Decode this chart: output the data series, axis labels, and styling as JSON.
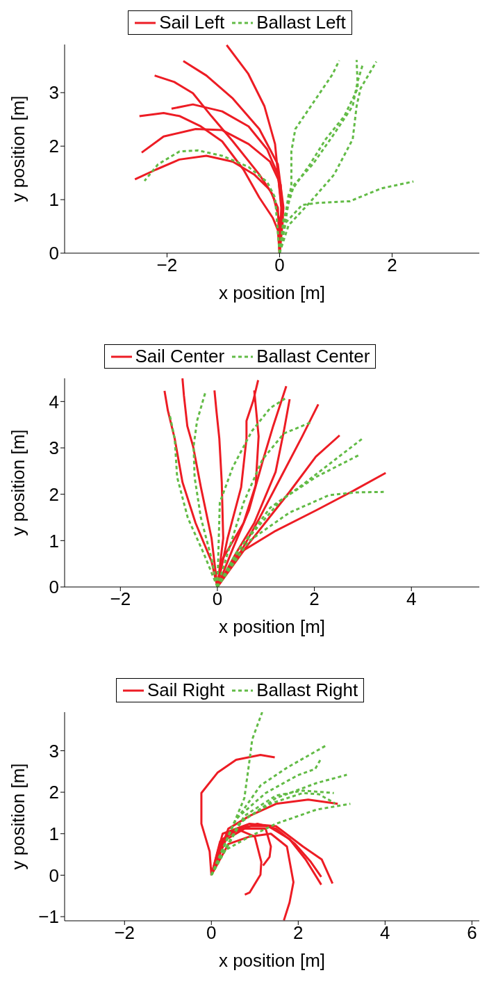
{
  "chart_data": [
    {
      "type": "line",
      "xlabel": "x position [m]",
      "ylabel": "y position [m]",
      "xlim": [
        -3.82,
        3.55
      ],
      "ylim": [
        0,
        3.9
      ],
      "xticks": [
        -2,
        0,
        2
      ],
      "yticks": [
        0,
        1,
        2,
        3
      ],
      "legend": "top",
      "series": [
        {
          "name": "Sail Left",
          "color": "#ed1c24",
          "line_style": "solid",
          "x": [
            0,
            0.03,
            -0.08,
            -0.27,
            -0.56,
            -0.94
          ],
          "values": [
            0,
            0.85,
            2.04,
            2.75,
            3.36,
            3.89
          ]
        },
        {
          "color": "#ed1c24",
          "line_style": "solid",
          "x": [
            0,
            0.07,
            -0.03,
            -0.36,
            -0.83,
            -1.3,
            -1.71
          ],
          "values": [
            0,
            0.85,
            1.66,
            2.32,
            2.89,
            3.32,
            3.59
          ]
        },
        {
          "color": "#ed1c24",
          "line_style": "solid",
          "x": [
            0,
            0,
            -0.12,
            -0.36,
            -0.83,
            -1.21,
            -1.54,
            -1.87,
            -2.22
          ],
          "values": [
            0,
            0.62,
            1.09,
            1.47,
            2.09,
            2.56,
            2.99,
            3.2,
            3.32
          ]
        },
        {
          "color": "#ed1c24",
          "line_style": "solid",
          "x": [
            0,
            0.04,
            -0.03,
            -0.22,
            -0.55,
            -1.02,
            -1.54,
            -1.92
          ],
          "values": [
            0,
            0.85,
            1.47,
            1.94,
            2.37,
            2.65,
            2.78,
            2.7
          ]
        },
        {
          "color": "#ed1c24",
          "line_style": "solid",
          "x": [
            0,
            -0.03,
            -0.12,
            -0.36,
            -0.64,
            -1.02,
            -1.4,
            -1.77,
            -2.06,
            -2.49
          ],
          "values": [
            0,
            0.43,
            0.66,
            1.04,
            1.56,
            2.09,
            2.37,
            2.56,
            2.62,
            2.56
          ]
        },
        {
          "color": "#ed1c24",
          "line_style": "solid",
          "x": [
            0,
            0.06,
            0.02,
            -0.17,
            -0.55,
            -1.02,
            -1.49,
            -2.06,
            -2.45
          ],
          "values": [
            0,
            0.62,
            1.28,
            1.71,
            2.04,
            2.3,
            2.32,
            2.18,
            1.88
          ]
        },
        {
          "color": "#ed1c24",
          "line_style": "solid",
          "x": [
            0,
            -0.03,
            -0.17,
            -0.45,
            -0.83,
            -1.3,
            -1.78,
            -2.2,
            -2.57
          ],
          "values": [
            0,
            0.85,
            1.18,
            1.47,
            1.71,
            1.82,
            1.75,
            1.56,
            1.38
          ]
        },
        {
          "name": "Ballast Left",
          "color": "#62bb46",
          "line_style": "dashed",
          "x": [
            0,
            -0.08,
            -0.22,
            -0.55,
            -1.02,
            -1.45,
            -1.78,
            -2.16,
            -2.4
          ],
          "values": [
            0,
            1.04,
            1.33,
            1.61,
            1.82,
            1.92,
            1.9,
            1.66,
            1.35
          ]
        },
        {
          "color": "#62bb46",
          "line_style": "dashed",
          "x": [
            0,
            0.11,
            0.21,
            0.21,
            0.28,
            0.59,
            0.94,
            1.06
          ],
          "values": [
            0,
            0.62,
            1.28,
            1.9,
            2.32,
            2.8,
            3.34,
            3.6
          ]
        },
        {
          "color": "#62bb46",
          "line_style": "dashed",
          "x": [
            0,
            0.16,
            0.54,
            0.82,
            1.15,
            1.39,
            1.37
          ],
          "values": [
            0,
            1.09,
            1.66,
            2.13,
            2.56,
            3.08,
            3.61
          ]
        },
        {
          "color": "#62bb46",
          "line_style": "dashed",
          "x": [
            0,
            0.07,
            0.26,
            0.59,
            0.97,
            1.3,
            1.39,
            1.48
          ],
          "values": [
            0,
            0.62,
            1.28,
            1.66,
            2.23,
            2.75,
            3.22,
            3.53
          ]
        },
        {
          "color": "#62bb46",
          "line_style": "dashed",
          "x": [
            0,
            0.16,
            0.54,
            0.97,
            1.3,
            1.37,
            1.44,
            1.72
          ],
          "values": [
            0,
            0.52,
            0.95,
            1.47,
            2.13,
            2.75,
            3.08,
            3.58
          ]
        },
        {
          "color": "#62bb46",
          "line_style": "dashed",
          "x": [
            0,
            0.11,
            0.4,
            0.68,
            1.25,
            1.48,
            1.81,
            2.38
          ],
          "values": [
            0,
            0.57,
            0.9,
            0.94,
            0.97,
            1.07,
            1.21,
            1.34
          ]
        }
      ]
    },
    {
      "type": "line",
      "xlabel": "x position [m]",
      "ylabel": "y position [m]",
      "xlim": [
        -3.15,
        5.4
      ],
      "ylim": [
        0,
        4.5
      ],
      "xticks": [
        -2,
        0,
        2,
        4
      ],
      "yticks": [
        0,
        1,
        2,
        3,
        4
      ],
      "legend": "top",
      "series": [
        {
          "name": "Sail Center",
          "color": "#ed1c24",
          "line_style": "solid",
          "x": [
            0,
            -0.12,
            -0.45,
            -0.72,
            -0.88,
            -1.02,
            -1.09
          ],
          "values": [
            0,
            0.55,
            1.38,
            2.26,
            3.2,
            3.8,
            4.23
          ]
        },
        {
          "color": "#ed1c24",
          "line_style": "solid",
          "x": [
            0,
            -0.12,
            -0.34,
            -0.5,
            -0.62,
            -0.69,
            -0.72
          ],
          "values": [
            0,
            1.05,
            2.15,
            3.03,
            3.47,
            4.13,
            4.5
          ]
        },
        {
          "color": "#ed1c24",
          "line_style": "solid",
          "x": [
            0,
            0.12,
            0.09,
            0.04,
            -0.02,
            -0.06
          ],
          "values": [
            0,
            1.05,
            2.26,
            3.2,
            3.8,
            4.24
          ]
        },
        {
          "color": "#ed1c24",
          "line_style": "solid",
          "x": [
            0,
            0.21,
            0.49,
            0.6,
            0.6,
            0.74,
            0.84
          ],
          "values": [
            0,
            1.05,
            2.15,
            3.2,
            3.58,
            4.02,
            4.46
          ]
        },
        {
          "color": "#ed1c24",
          "line_style": "solid",
          "x": [
            0,
            0.11,
            0.54,
            0.79,
            0.85,
            0.76
          ],
          "values": [
            0,
            0.61,
            1.38,
            2.2,
            3.25,
            4.24
          ]
        },
        {
          "color": "#ed1c24",
          "line_style": "solid",
          "x": [
            0,
            0.32,
            0.65,
            0.93,
            1.15,
            1.42
          ],
          "values": [
            0,
            0.83,
            1.65,
            2.7,
            3.47,
            4.33
          ]
        },
        {
          "color": "#ed1c24",
          "line_style": "solid",
          "x": [
            0,
            0.38,
            0.76,
            1.2,
            1.37,
            1.49
          ],
          "values": [
            0,
            0.72,
            1.38,
            2.48,
            3.36,
            4.05
          ]
        },
        {
          "color": "#ed1c24",
          "line_style": "solid",
          "x": [
            0,
            0.43,
            0.87,
            1.31,
            1.75,
            2.08
          ],
          "values": [
            0,
            0.66,
            1.49,
            2.37,
            3.25,
            3.94
          ]
        },
        {
          "color": "#ed1c24",
          "line_style": "solid",
          "x": [
            0,
            0.65,
            1.48,
            2.03,
            2.52
          ],
          "values": [
            0,
            0.94,
            2.04,
            2.81,
            3.27
          ]
        },
        {
          "color": "#ed1c24",
          "line_style": "solid",
          "x": [
            0,
            0.43,
            1.2,
            2.03,
            2.74,
            3.47
          ],
          "values": [
            0,
            0.72,
            1.21,
            1.65,
            2.04,
            2.46
          ]
        },
        {
          "name": "Ballast Center",
          "color": "#62bb46",
          "line_style": "dashed",
          "x": [
            0,
            -0.28,
            -0.61,
            -0.83,
            -0.88,
            -0.99
          ],
          "values": [
            0,
            0.72,
            1.49,
            2.37,
            3.2,
            3.75
          ]
        },
        {
          "color": "#62bb46",
          "line_style": "dashed",
          "x": [
            0,
            -0.12,
            -0.34,
            -0.47,
            -0.49,
            -0.42,
            -0.25
          ],
          "values": [
            0,
            0.61,
            1.49,
            2.37,
            3.03,
            3.58,
            4.19
          ]
        },
        {
          "color": "#62bb46",
          "line_style": "dashed",
          "x": [
            0,
            0.05,
            0.32,
            0.71,
            1.09,
            1.42
          ],
          "values": [
            0,
            1.82,
            2.59,
            3.36,
            3.86,
            4.08
          ]
        },
        {
          "color": "#62bb46",
          "line_style": "dashed",
          "x": [
            0,
            0.21,
            0.54,
            0.93,
            1.37,
            1.95
          ],
          "values": [
            0,
            0.72,
            1.82,
            2.75,
            3.31,
            3.56
          ]
        },
        {
          "color": "#62bb46",
          "line_style": "dashed",
          "x": [
            0,
            0.38,
            1.09,
            1.75,
            2.58,
            2.99
          ],
          "values": [
            0,
            0.72,
            1.71,
            2.2,
            2.87,
            3.2
          ]
        },
        {
          "color": "#62bb46",
          "line_style": "dashed",
          "x": [
            0,
            0.54,
            1.31,
            2.03,
            2.93
          ],
          "values": [
            0,
            0.94,
            1.87,
            2.37,
            2.85
          ]
        },
        {
          "color": "#62bb46",
          "line_style": "dashed",
          "x": [
            0,
            0.65,
            1.48,
            2.3,
            2.85,
            3.43
          ],
          "values": [
            0,
            0.99,
            1.6,
            1.98,
            2.04,
            2.05
          ]
        }
      ]
    },
    {
      "type": "line",
      "xlabel": "x position [m]",
      "ylabel": "y position [m]",
      "xlim": [
        -3.38,
        6.17
      ],
      "ylim": [
        -1.1,
        3.93
      ],
      "xticks": [
        -2,
        0,
        2,
        4,
        6
      ],
      "yticks": [
        -1,
        0,
        1,
        2,
        3
      ],
      "legend": "top",
      "series": [
        {
          "name": "Sail Right",
          "color": "#ed1c24",
          "line_style": "solid",
          "x": [
            0,
            -0.04,
            -0.23,
            -0.23,
            0.14,
            0.57,
            1.13,
            1.46
          ],
          "values": [
            0,
            0.57,
            1.24,
            1.98,
            2.47,
            2.78,
            2.9,
            2.84
          ]
        },
        {
          "color": "#ed1c24",
          "line_style": "solid",
          "x": [
            0,
            0.2,
            0.57,
            1.0,
            1.15,
            1.13,
            0.88,
            0.77
          ],
          "values": [
            0,
            0.81,
            1.12,
            0.93,
            0.32,
            0.01,
            -0.42,
            -0.47
          ]
        },
        {
          "color": "#ed1c24",
          "line_style": "solid",
          "x": [
            0,
            0.26,
            0.76,
            1.25,
            1.37,
            1.34,
            1.19
          ],
          "values": [
            0,
            0.81,
            1.12,
            1.12,
            0.69,
            0.44,
            0.23
          ]
        },
        {
          "color": "#ed1c24",
          "line_style": "solid",
          "x": [
            0,
            0.39,
            0.88,
            1.37,
            1.74,
            1.89,
            1.8,
            1.67
          ],
          "values": [
            0,
            0.75,
            0.93,
            1.0,
            0.69,
            -0.17,
            -0.66,
            -1.09
          ]
        },
        {
          "color": "#ed1c24",
          "line_style": "solid",
          "x": [
            0,
            0.26,
            0.76,
            1.31,
            1.8,
            2.17,
            2.53
          ],
          "values": [
            0,
            0.87,
            1.18,
            1.18,
            0.87,
            0.38,
            -0.23
          ]
        },
        {
          "color": "#ed1c24",
          "line_style": "solid",
          "x": [
            0,
            0.39,
            1.06,
            1.49,
            1.93,
            2.29,
            2.53
          ],
          "values": [
            0,
            1.0,
            1.24,
            1.12,
            0.75,
            0.32,
            -0.04
          ]
        },
        {
          "color": "#ed1c24",
          "line_style": "solid",
          "x": [
            0,
            0.26,
            0.88,
            1.49,
            2.11,
            2.54,
            2.79
          ],
          "values": [
            0,
            1.0,
            1.24,
            1.18,
            0.69,
            0.38,
            -0.2
          ]
        },
        {
          "color": "#ed1c24",
          "line_style": "solid",
          "x": [
            0,
            0.39,
            0.88,
            1.49,
            2.23,
            2.91
          ],
          "values": [
            0,
            1.12,
            1.43,
            1.72,
            1.82,
            1.72
          ]
        },
        {
          "name": "Ballast Right",
          "color": "#62bb46",
          "line_style": "dashed",
          "x": [
            0,
            0.39,
            0.76,
            0.88,
            0.94,
            1.17
          ],
          "values": [
            0,
            0.93,
            1.86,
            2.78,
            3.27,
            3.93
          ]
        },
        {
          "color": "#62bb46",
          "line_style": "dashed",
          "x": [
            0,
            0.51,
            1.13,
            1.74,
            2.63
          ],
          "values": [
            0,
            1.24,
            2.16,
            2.59,
            3.12
          ]
        },
        {
          "color": "#62bb46",
          "line_style": "dashed",
          "x": [
            0,
            0.57,
            1.25,
            1.99,
            2.39,
            2.51
          ],
          "values": [
            0,
            1.36,
            1.98,
            2.41,
            2.56,
            2.78
          ]
        },
        {
          "color": "#62bb46",
          "line_style": "dashed",
          "x": [
            0,
            0.63,
            1.49,
            2.42,
            3.12
          ],
          "values": [
            0,
            1.24,
            1.86,
            2.22,
            2.42
          ]
        },
        {
          "color": "#62bb46",
          "line_style": "dashed",
          "x": [
            0,
            0.76,
            1.49,
            2.11,
            2.82
          ],
          "values": [
            0,
            1.43,
            1.92,
            2.04,
            1.98
          ]
        },
        {
          "color": "#62bb46",
          "line_style": "dashed",
          "x": [
            0,
            0.69,
            1.37,
            2.11,
            2.48,
            2.85
          ],
          "values": [
            0,
            1.3,
            1.73,
            1.98,
            1.95,
            1.73
          ]
        },
        {
          "color": "#62bb46",
          "line_style": "dashed",
          "x": [
            0,
            0.26,
            0.88,
            1.49,
            2.42,
            3.2
          ],
          "values": [
            0,
            0.57,
            0.93,
            1.24,
            1.58,
            1.72
          ]
        }
      ]
    }
  ]
}
